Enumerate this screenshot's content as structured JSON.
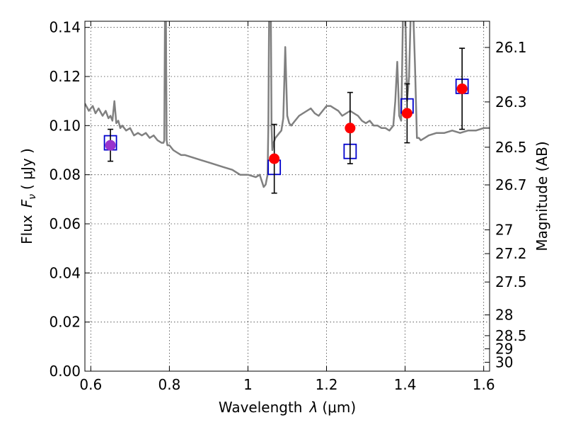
{
  "chart_data": {
    "type": "scatter",
    "title": "",
    "xlabel": "Wavelength",
    "xlabel_symbol": "λ",
    "xlabel_unit": "(μm)",
    "ylabel": "Flux",
    "ylabel_symbol": "F",
    "ylabel_subscript": "ν",
    "ylabel_unit": "( μJy )",
    "y2label": "Magnitude (AB)",
    "xlim": [
      0.585,
      1.615
    ],
    "ylim": [
      0.0,
      0.1425
    ],
    "grid": true,
    "x_ticks": [
      "0.6",
      "0.8",
      "1",
      "1.2",
      "1.4",
      "1.6"
    ],
    "y_ticks": [
      "0.00",
      "0.02",
      "0.04",
      "0.06",
      "0.08",
      "0.10",
      "0.12",
      "0.14"
    ],
    "y2_ticks": [
      "26.1",
      "26.3",
      "26.5",
      "26.7",
      "27",
      "27.2",
      "27.5",
      "28",
      "28.5",
      "29",
      "30"
    ],
    "colors": {
      "model": "#808080",
      "observed": "#ff0000",
      "model_points": "#0000cc",
      "overlap": "#9933cc",
      "errorbar": "#000000"
    },
    "series": [
      {
        "kind": "line",
        "x": [
          0.585,
          0.595,
          0.605,
          0.612,
          0.62,
          0.63,
          0.638,
          0.645,
          0.65,
          0.655,
          0.66,
          0.665,
          0.67,
          0.675,
          0.68,
          0.69,
          0.7,
          0.71,
          0.72,
          0.73,
          0.74,
          0.75,
          0.76,
          0.77,
          0.78,
          0.785,
          0.787,
          0.789,
          0.791,
          0.793,
          0.795,
          0.8,
          0.81,
          0.82,
          0.83,
          0.84,
          0.86,
          0.88,
          0.9,
          0.92,
          0.94,
          0.96,
          0.98,
          1.0,
          1.02,
          1.03,
          1.04,
          1.045,
          1.05,
          1.052,
          1.054,
          1.056,
          1.058,
          1.06,
          1.062,
          1.065,
          1.07,
          1.075,
          1.08,
          1.085,
          1.09,
          1.095,
          1.1,
          1.105,
          1.11,
          1.12,
          1.13,
          1.14,
          1.15,
          1.16,
          1.17,
          1.18,
          1.19,
          1.2,
          1.21,
          1.22,
          1.23,
          1.24,
          1.25,
          1.26,
          1.27,
          1.28,
          1.29,
          1.3,
          1.31,
          1.32,
          1.33,
          1.34,
          1.35,
          1.36,
          1.37,
          1.375,
          1.38,
          1.385,
          1.39,
          1.392,
          1.395,
          1.4,
          1.405,
          1.41,
          1.415,
          1.42,
          1.425,
          1.43,
          1.435,
          1.44,
          1.45,
          1.46,
          1.48,
          1.5,
          1.52,
          1.54,
          1.56,
          1.58,
          1.6,
          1.615
        ],
        "y": [
          0.109,
          0.106,
          0.108,
          0.105,
          0.107,
          0.104,
          0.106,
          0.103,
          0.104,
          0.102,
          0.11,
          0.101,
          0.102,
          0.099,
          0.1,
          0.098,
          0.099,
          0.096,
          0.097,
          0.096,
          0.097,
          0.095,
          0.096,
          0.094,
          0.093,
          0.093,
          0.094,
          0.15,
          0.15,
          0.094,
          0.092,
          0.092,
          0.09,
          0.089,
          0.088,
          0.088,
          0.087,
          0.086,
          0.085,
          0.084,
          0.083,
          0.082,
          0.08,
          0.08,
          0.079,
          0.08,
          0.075,
          0.076,
          0.08,
          0.1,
          0.15,
          0.15,
          0.15,
          0.1,
          0.09,
          0.093,
          0.095,
          0.096,
          0.097,
          0.098,
          0.103,
          0.132,
          0.104,
          0.101,
          0.1,
          0.102,
          0.104,
          0.105,
          0.106,
          0.107,
          0.105,
          0.104,
          0.106,
          0.108,
          0.108,
          0.107,
          0.106,
          0.104,
          0.105,
          0.106,
          0.105,
          0.104,
          0.102,
          0.101,
          0.102,
          0.1,
          0.1,
          0.099,
          0.099,
          0.098,
          0.1,
          0.11,
          0.126,
          0.104,
          0.102,
          0.12,
          0.15,
          0.15,
          0.11,
          0.12,
          0.15,
          0.15,
          0.125,
          0.095,
          0.095,
          0.094,
          0.095,
          0.096,
          0.097,
          0.097,
          0.098,
          0.097,
          0.098,
          0.098,
          0.099,
          0.099
        ]
      },
      {
        "kind": "observed",
        "x": [
          0.65,
          1.067,
          1.26,
          1.405,
          1.545
        ],
        "y": [
          0.092,
          0.0865,
          0.099,
          0.105,
          0.115
        ],
        "yerr": [
          0.0065,
          0.014,
          0.0145,
          0.012,
          0.0165
        ]
      },
      {
        "kind": "model_points",
        "x": [
          0.65,
          1.067,
          1.26,
          1.405,
          1.545
        ],
        "y": [
          0.093,
          0.083,
          0.0895,
          0.108,
          0.116
        ]
      }
    ]
  }
}
